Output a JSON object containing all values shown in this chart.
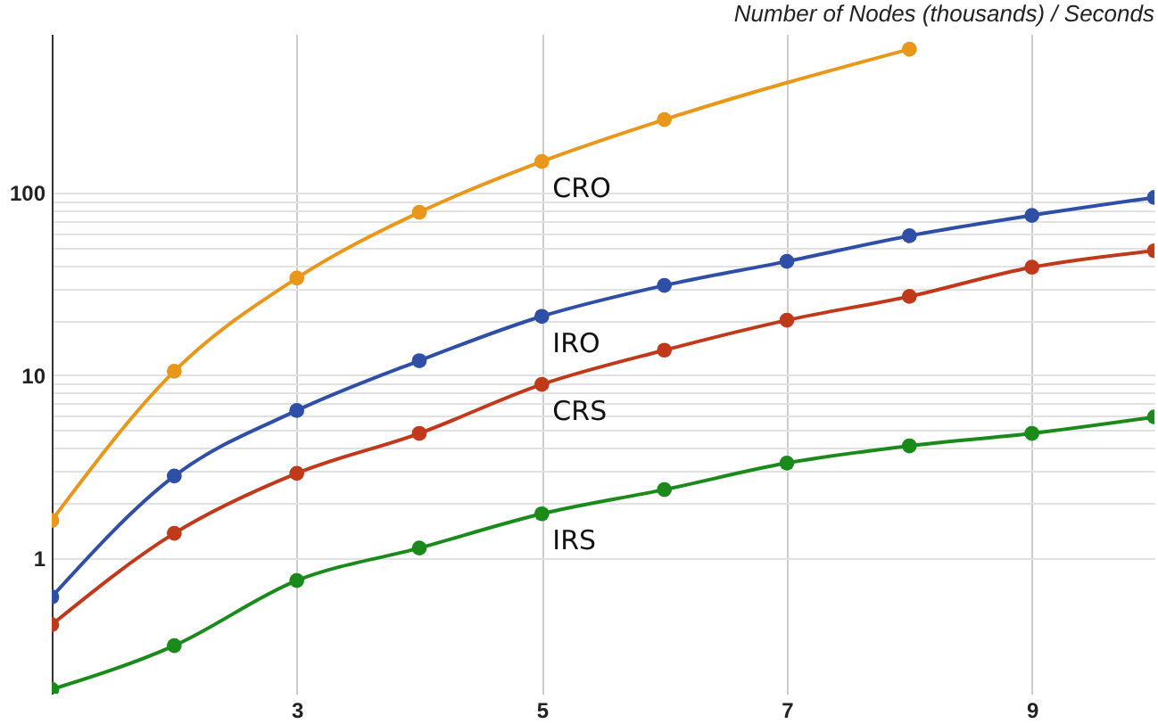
{
  "chart_data": {
    "type": "line",
    "title": "Number of Nodes (thousands) / Seconds",
    "x": [
      1,
      2,
      3,
      4,
      5,
      6,
      7,
      8,
      9,
      10
    ],
    "series": [
      {
        "name": "CRO",
        "color": "#e8971a",
        "x": [
          1,
          2,
          3,
          4,
          5,
          6,
          8
        ],
        "values": [
          1.6,
          10.5,
          34,
          78,
          148,
          251,
          610
        ]
      },
      {
        "name": "IRO",
        "color": "#2f4fa6",
        "values": [
          0.61,
          2.8,
          6.4,
          12,
          21,
          31,
          42,
          58,
          75,
          94
        ]
      },
      {
        "name": "CRS",
        "color": "#c0391b",
        "values": [
          0.43,
          1.36,
          2.9,
          4.8,
          8.9,
          13.7,
          20,
          27,
          39,
          48
        ]
      },
      {
        "name": "IRS",
        "color": "#1a8a1a",
        "values": [
          0.19,
          0.33,
          0.75,
          1.13,
          1.74,
          2.36,
          3.3,
          4.1,
          4.8,
          5.9
        ]
      }
    ],
    "log": "y",
    "xlim": [
      1,
      10
    ],
    "xticks": [
      3,
      5,
      7,
      9
    ],
    "ylim": [
      0.18,
      740
    ],
    "yticks": [
      1,
      {
        "value": 2,
        "label": null
      },
      {
        "value": 3,
        "label": null
      },
      {
        "value": 4,
        "label": null
      },
      {
        "value": 5,
        "label": null
      },
      {
        "value": 6,
        "label": null
      },
      {
        "value": 7,
        "label": null
      },
      {
        "value": 8,
        "label": null
      },
      {
        "value": 9,
        "label": null
      },
      10,
      {
        "value": 20,
        "label": null
      },
      {
        "value": 30,
        "label": null
      },
      {
        "value": 40,
        "label": null
      },
      {
        "value": 50,
        "label": null
      },
      {
        "value": 60,
        "label": null
      },
      {
        "value": 70,
        "label": null
      },
      {
        "value": 80,
        "label": null
      },
      {
        "value": 90,
        "label": null
      },
      100
    ],
    "grid": true,
    "marker": "circle",
    "line_style": "solid",
    "legend": false
  }
}
